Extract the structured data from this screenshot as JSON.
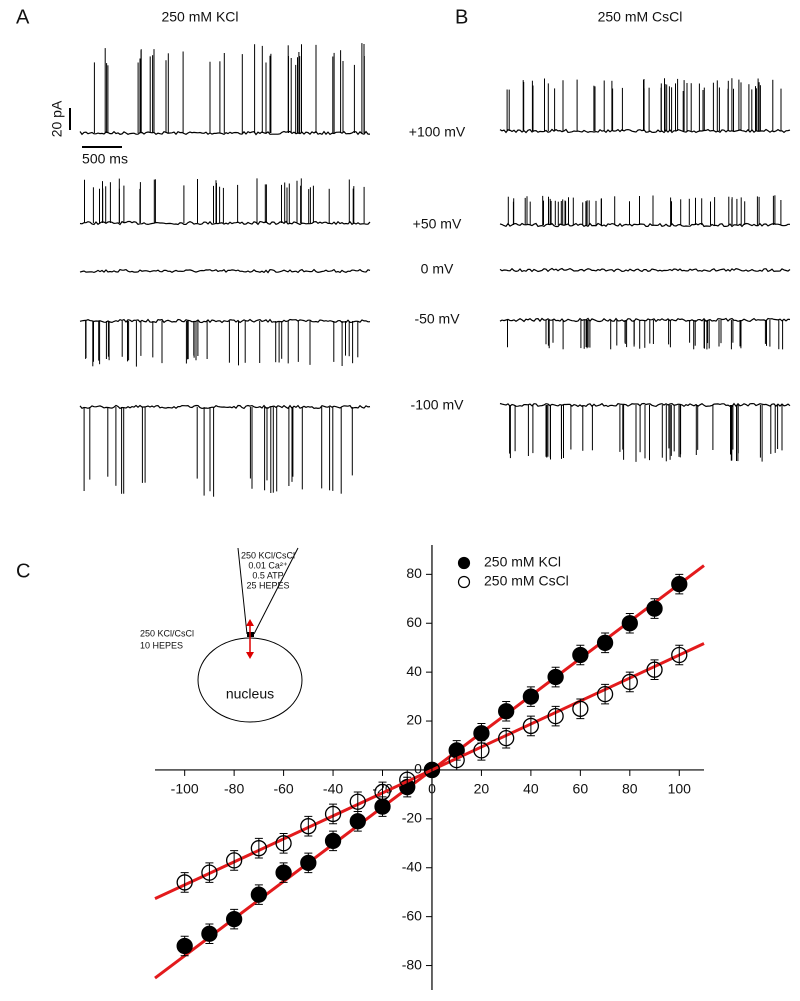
{
  "panels": {
    "a": {
      "label": "A",
      "title": "250 mM KCl"
    },
    "b": {
      "label": "B",
      "title": "250 mM CsCl"
    },
    "voltages": [
      "+100 mV",
      "+50 mV",
      "0 mV",
      "-50 mV",
      "-100 mV"
    ],
    "scale_bar": {
      "current": "20 pA",
      "time": "500 ms"
    }
  },
  "inset": {
    "pipette": [
      "250 KCl/CsCl",
      "0.01 Ca²⁺",
      "0.5 ATP",
      "25 HEPES"
    ],
    "bath": [
      "250 KCl/CsCl",
      "10 HEPES"
    ],
    "nucleus": "nucleus"
  },
  "chart_data": {
    "type": "scatter",
    "label": "C",
    "x": [
      -100,
      -90,
      -80,
      -70,
      -60,
      -50,
      -40,
      -30,
      -20,
      -10,
      0,
      10,
      20,
      30,
      40,
      50,
      60,
      70,
      80,
      90,
      100
    ],
    "series": [
      {
        "name": "250 mM KCl",
        "color": "#000000",
        "filled": true,
        "fit_color": "#e31a1c",
        "fit_slope": 0.76,
        "values": [
          -72,
          -67,
          -61,
          -51,
          -42,
          -38,
          -29,
          -21,
          -15,
          -7,
          0,
          8,
          15,
          24,
          30,
          38,
          47,
          52,
          60,
          66,
          76
        ],
        "errors": [
          4,
          4,
          4,
          4,
          4,
          4,
          4,
          4,
          4,
          4,
          2,
          4,
          4,
          4,
          4,
          4,
          4,
          4,
          4,
          4,
          4
        ]
      },
      {
        "name": "250 mM CsCl",
        "color": "#000000",
        "filled": false,
        "fit_color": "#e31a1c",
        "fit_slope": 0.47,
        "values": [
          -46,
          -42,
          -37,
          -32,
          -30,
          -23,
          -18,
          -13,
          -9,
          -4,
          0,
          4,
          8,
          13,
          18,
          22,
          25,
          31,
          36,
          41,
          47
        ],
        "errors": [
          4,
          4,
          4,
          4,
          4,
          4,
          4,
          4,
          4,
          4,
          2,
          4,
          4,
          4,
          4,
          4,
          4,
          4,
          4,
          4,
          4
        ]
      }
    ],
    "xlim": [
      -112,
      110
    ],
    "ylim": [
      -90,
      92
    ],
    "xticks": [
      -100,
      -80,
      -60,
      -40,
      -20,
      0,
      20,
      40,
      60,
      80,
      100
    ],
    "yticks": [
      -80,
      -60,
      -40,
      -20,
      0,
      20,
      40,
      60,
      80
    ],
    "legend": "upper right"
  }
}
